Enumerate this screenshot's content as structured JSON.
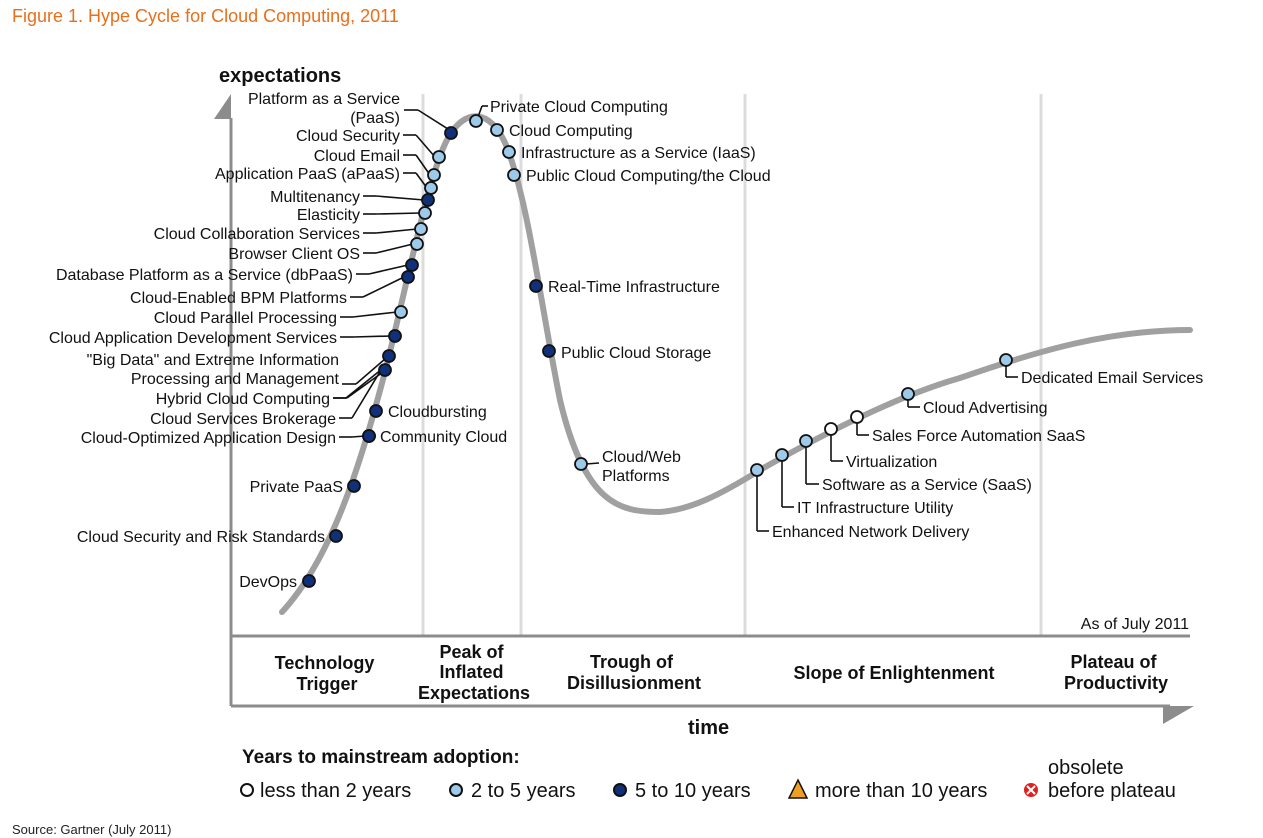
{
  "figure_title": "Figure 1. Hype Cycle for Cloud Computing, 2011",
  "source": "Source: Gartner (July 2011)",
  "chart_data": {
    "type": "line",
    "title": "Hype Cycle for Cloud Computing, 2011",
    "ylabel": "expectations",
    "xlabel": "time",
    "as_of": "As of July 2011",
    "phases": [
      {
        "key": "trigger",
        "lines": [
          "Technology",
          "Trigger"
        ]
      },
      {
        "key": "peak",
        "lines": [
          "Peak of",
          "Inflated",
          "Expectations"
        ]
      },
      {
        "key": "trough",
        "lines": [
          "Trough of",
          "Disillusionment"
        ]
      },
      {
        "key": "slope",
        "lines": [
          "Slope of Enlightenment"
        ]
      },
      {
        "key": "plateau",
        "lines": [
          "Plateau of",
          "Productivity"
        ]
      }
    ],
    "legend_title": "Years to mainstream adoption:",
    "legend": [
      {
        "key": "lt2",
        "symbol": "circle",
        "fill": "#ffffff",
        "label": "less than 2 years"
      },
      {
        "key": "2to5",
        "symbol": "circle",
        "fill": "#9ecae9",
        "label": "2 to 5 years"
      },
      {
        "key": "5to10",
        "symbol": "circle",
        "fill": "#10307a",
        "label": "5 to 10 years"
      },
      {
        "key": "gt10",
        "symbol": "triangle",
        "fill": "#f0a020",
        "label": "more than 10 years"
      },
      {
        "key": "obsolete",
        "symbol": "xcircle",
        "fill": "#e02020",
        "label": "before plateau",
        "label_top": "obsolete"
      }
    ],
    "technologies": [
      {
        "name": "DevOps",
        "category": "5to10"
      },
      {
        "name": "Cloud Security and Risk Standards",
        "category": "5to10"
      },
      {
        "name": "Private PaaS",
        "category": "5to10"
      },
      {
        "name": "Community Cloud",
        "category": "5to10"
      },
      {
        "name": "Cloud-Optimized Application Design",
        "category": "5to10"
      },
      {
        "name": "Cloudbursting",
        "category": "5to10"
      },
      {
        "name": "Cloud Services Brokerage",
        "category": "5to10"
      },
      {
        "name": "Hybrid Cloud Computing",
        "category": "5to10"
      },
      {
        "name": "\"Big Data\" and Extreme Information Processing and Management",
        "category": "5to10"
      },
      {
        "name": "Cloud Application Development Services",
        "category": "5to10"
      },
      {
        "name": "Cloud Parallel Processing",
        "category": "2to5"
      },
      {
        "name": "Cloud-Enabled BPM Platforms",
        "category": "5to10"
      },
      {
        "name": "Database Platform as a Service (dbPaaS)",
        "category": "5to10"
      },
      {
        "name": "Browser Client OS",
        "category": "2to5"
      },
      {
        "name": "Cloud Collaboration Services",
        "category": "2to5"
      },
      {
        "name": "Elasticity",
        "category": "2to5"
      },
      {
        "name": "Multitenancy",
        "category": "5to10"
      },
      {
        "name": "Application PaaS (aPaaS)",
        "category": "2to5"
      },
      {
        "name": "Cloud Email",
        "category": "2to5"
      },
      {
        "name": "Cloud Security",
        "category": "2to5"
      },
      {
        "name": "Platform as a Service (PaaS)",
        "category": "5to10"
      },
      {
        "name": "Private Cloud Computing",
        "category": "2to5"
      },
      {
        "name": "Cloud Computing",
        "category": "2to5"
      },
      {
        "name": "Infrastructure as a Service (IaaS)",
        "category": "2to5"
      },
      {
        "name": "Public Cloud Computing/the Cloud",
        "category": "2to5"
      },
      {
        "name": "Real-Time Infrastructure",
        "category": "5to10"
      },
      {
        "name": "Public Cloud Storage",
        "category": "5to10"
      },
      {
        "name": "Cloud/Web Platforms",
        "category": "2to5"
      },
      {
        "name": "Enhanced Network Delivery",
        "category": "2to5"
      },
      {
        "name": "IT Infrastructure Utility",
        "category": "2to5"
      },
      {
        "name": "Software as a Service (SaaS)",
        "category": "2to5"
      },
      {
        "name": "Virtualization",
        "category": "lt2"
      },
      {
        "name": "Sales Force Automation SaaS",
        "category": "lt2"
      },
      {
        "name": "Cloud Advertising",
        "category": "2to5"
      },
      {
        "name": "Dedicated Email Services",
        "category": "2to5"
      }
    ]
  }
}
